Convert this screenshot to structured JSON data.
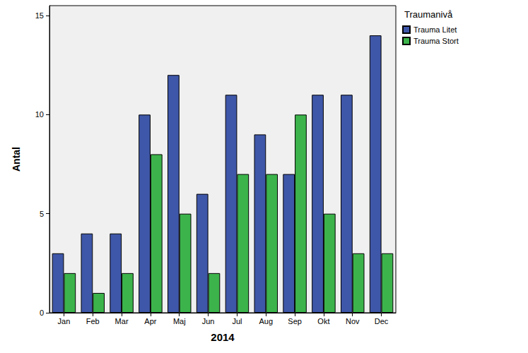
{
  "chart_data": {
    "type": "bar",
    "x_label": "2014",
    "y_label": "Antal",
    "legend_title": "Traumanivå",
    "categories": [
      "Jan",
      "Feb",
      "Mar",
      "Apr",
      "Maj",
      "Jun",
      "Jul",
      "Aug",
      "Sep",
      "Okt",
      "Nov",
      "Dec"
    ],
    "series": [
      {
        "name": "Trauma Litet",
        "color": "#3f57a8",
        "values": [
          3,
          4,
          4,
          10,
          12,
          6,
          11,
          9,
          7,
          11,
          11,
          14
        ]
      },
      {
        "name": "Trauma Stort",
        "color": "#3cb44b",
        "values": [
          2,
          1,
          2,
          8,
          5,
          2,
          7,
          7,
          10,
          5,
          3,
          3
        ]
      }
    ],
    "ylim": [
      0,
      15.5
    ],
    "yticks": [
      0,
      5,
      10,
      15
    ],
    "grid": false,
    "legend": "top-right"
  }
}
